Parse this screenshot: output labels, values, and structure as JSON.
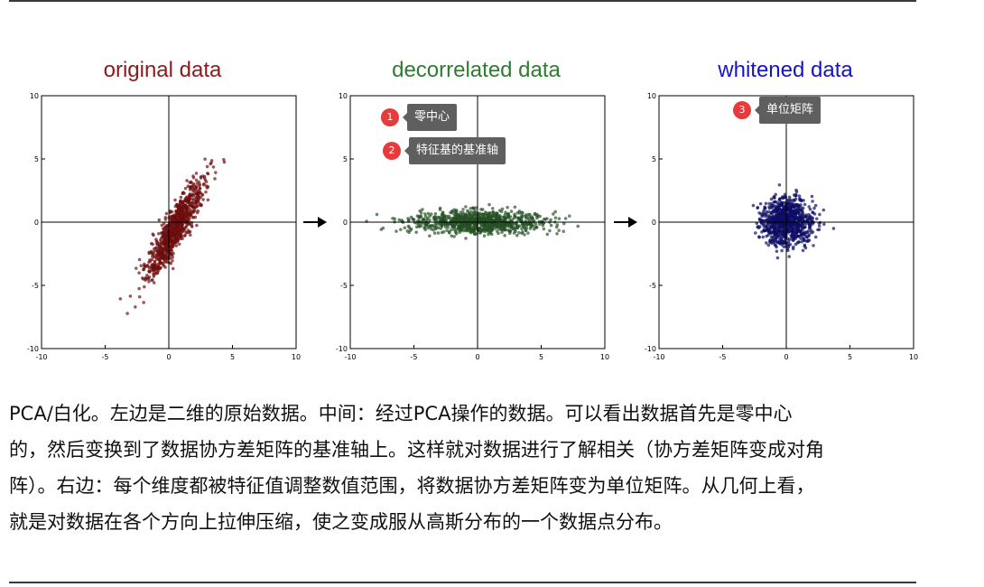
{
  "figure": {
    "panels": [
      {
        "title": "original data",
        "title_color": "#8b1a1a",
        "point_color": "#7a1010"
      },
      {
        "title": "decorrelated data",
        "title_color": "#2f7d2f",
        "point_color": "#2a5a2a"
      },
      {
        "title": "whitened data",
        "title_color": "#1414c8",
        "point_color": "#101070"
      }
    ],
    "annotations": [
      {
        "number": "1",
        "text": "零中心"
      },
      {
        "number": "2",
        "text": "特征基的基准轴"
      },
      {
        "number": "3",
        "text": "单位矩阵"
      }
    ]
  },
  "chart_data": [
    {
      "type": "scatter",
      "title": "original data",
      "xlim": [
        -10,
        10
      ],
      "ylim": [
        -10,
        10
      ],
      "xticks": [
        -10,
        -5,
        0,
        5,
        10
      ],
      "yticks": [
        -10,
        -5,
        0,
        5,
        10
      ],
      "grid": false,
      "distribution": {
        "center": [
          0.5,
          -0.5
        ],
        "spread_major": 2.2,
        "spread_minor": 0.45,
        "angle_deg": 62,
        "n": 900
      }
    },
    {
      "type": "scatter",
      "title": "decorrelated data",
      "xlim": [
        -10,
        10
      ],
      "ylim": [
        -10,
        10
      ],
      "xticks": [
        -10,
        -5,
        0,
        5,
        10
      ],
      "yticks": [
        -10,
        -5,
        0,
        5,
        10
      ],
      "grid": false,
      "distribution": {
        "center": [
          0,
          0
        ],
        "spread_major": 2.6,
        "spread_minor": 0.45,
        "angle_deg": 0,
        "n": 900
      }
    },
    {
      "type": "scatter",
      "title": "whitened data",
      "xlim": [
        -10,
        10
      ],
      "ylim": [
        -10,
        10
      ],
      "xticks": [
        -10,
        -5,
        0,
        5,
        10
      ],
      "yticks": [
        -10,
        -5,
        0,
        5,
        10
      ],
      "grid": false,
      "distribution": {
        "center": [
          0,
          0
        ],
        "spread_major": 0.95,
        "spread_minor": 0.95,
        "angle_deg": 0,
        "n": 900
      }
    }
  ],
  "caption": {
    "lines": [
      "PCA/白化。左边是二维的原始数据。中间：经过PCA操作的数据。可以看出数据首先是零中心",
      "的，然后变换到了数据协方差矩阵的基准轴上。这样就对数据进行了解相关（协方差矩阵变成对角",
      "阵）。右边：每个维度都被特征值调整数值范围，将数据协方差矩阵变为单位矩阵。从几何上看，",
      "就是对数据在各个方向上拉伸压缩，使之变成服从高斯分布的一个数据点分布。"
    ]
  }
}
